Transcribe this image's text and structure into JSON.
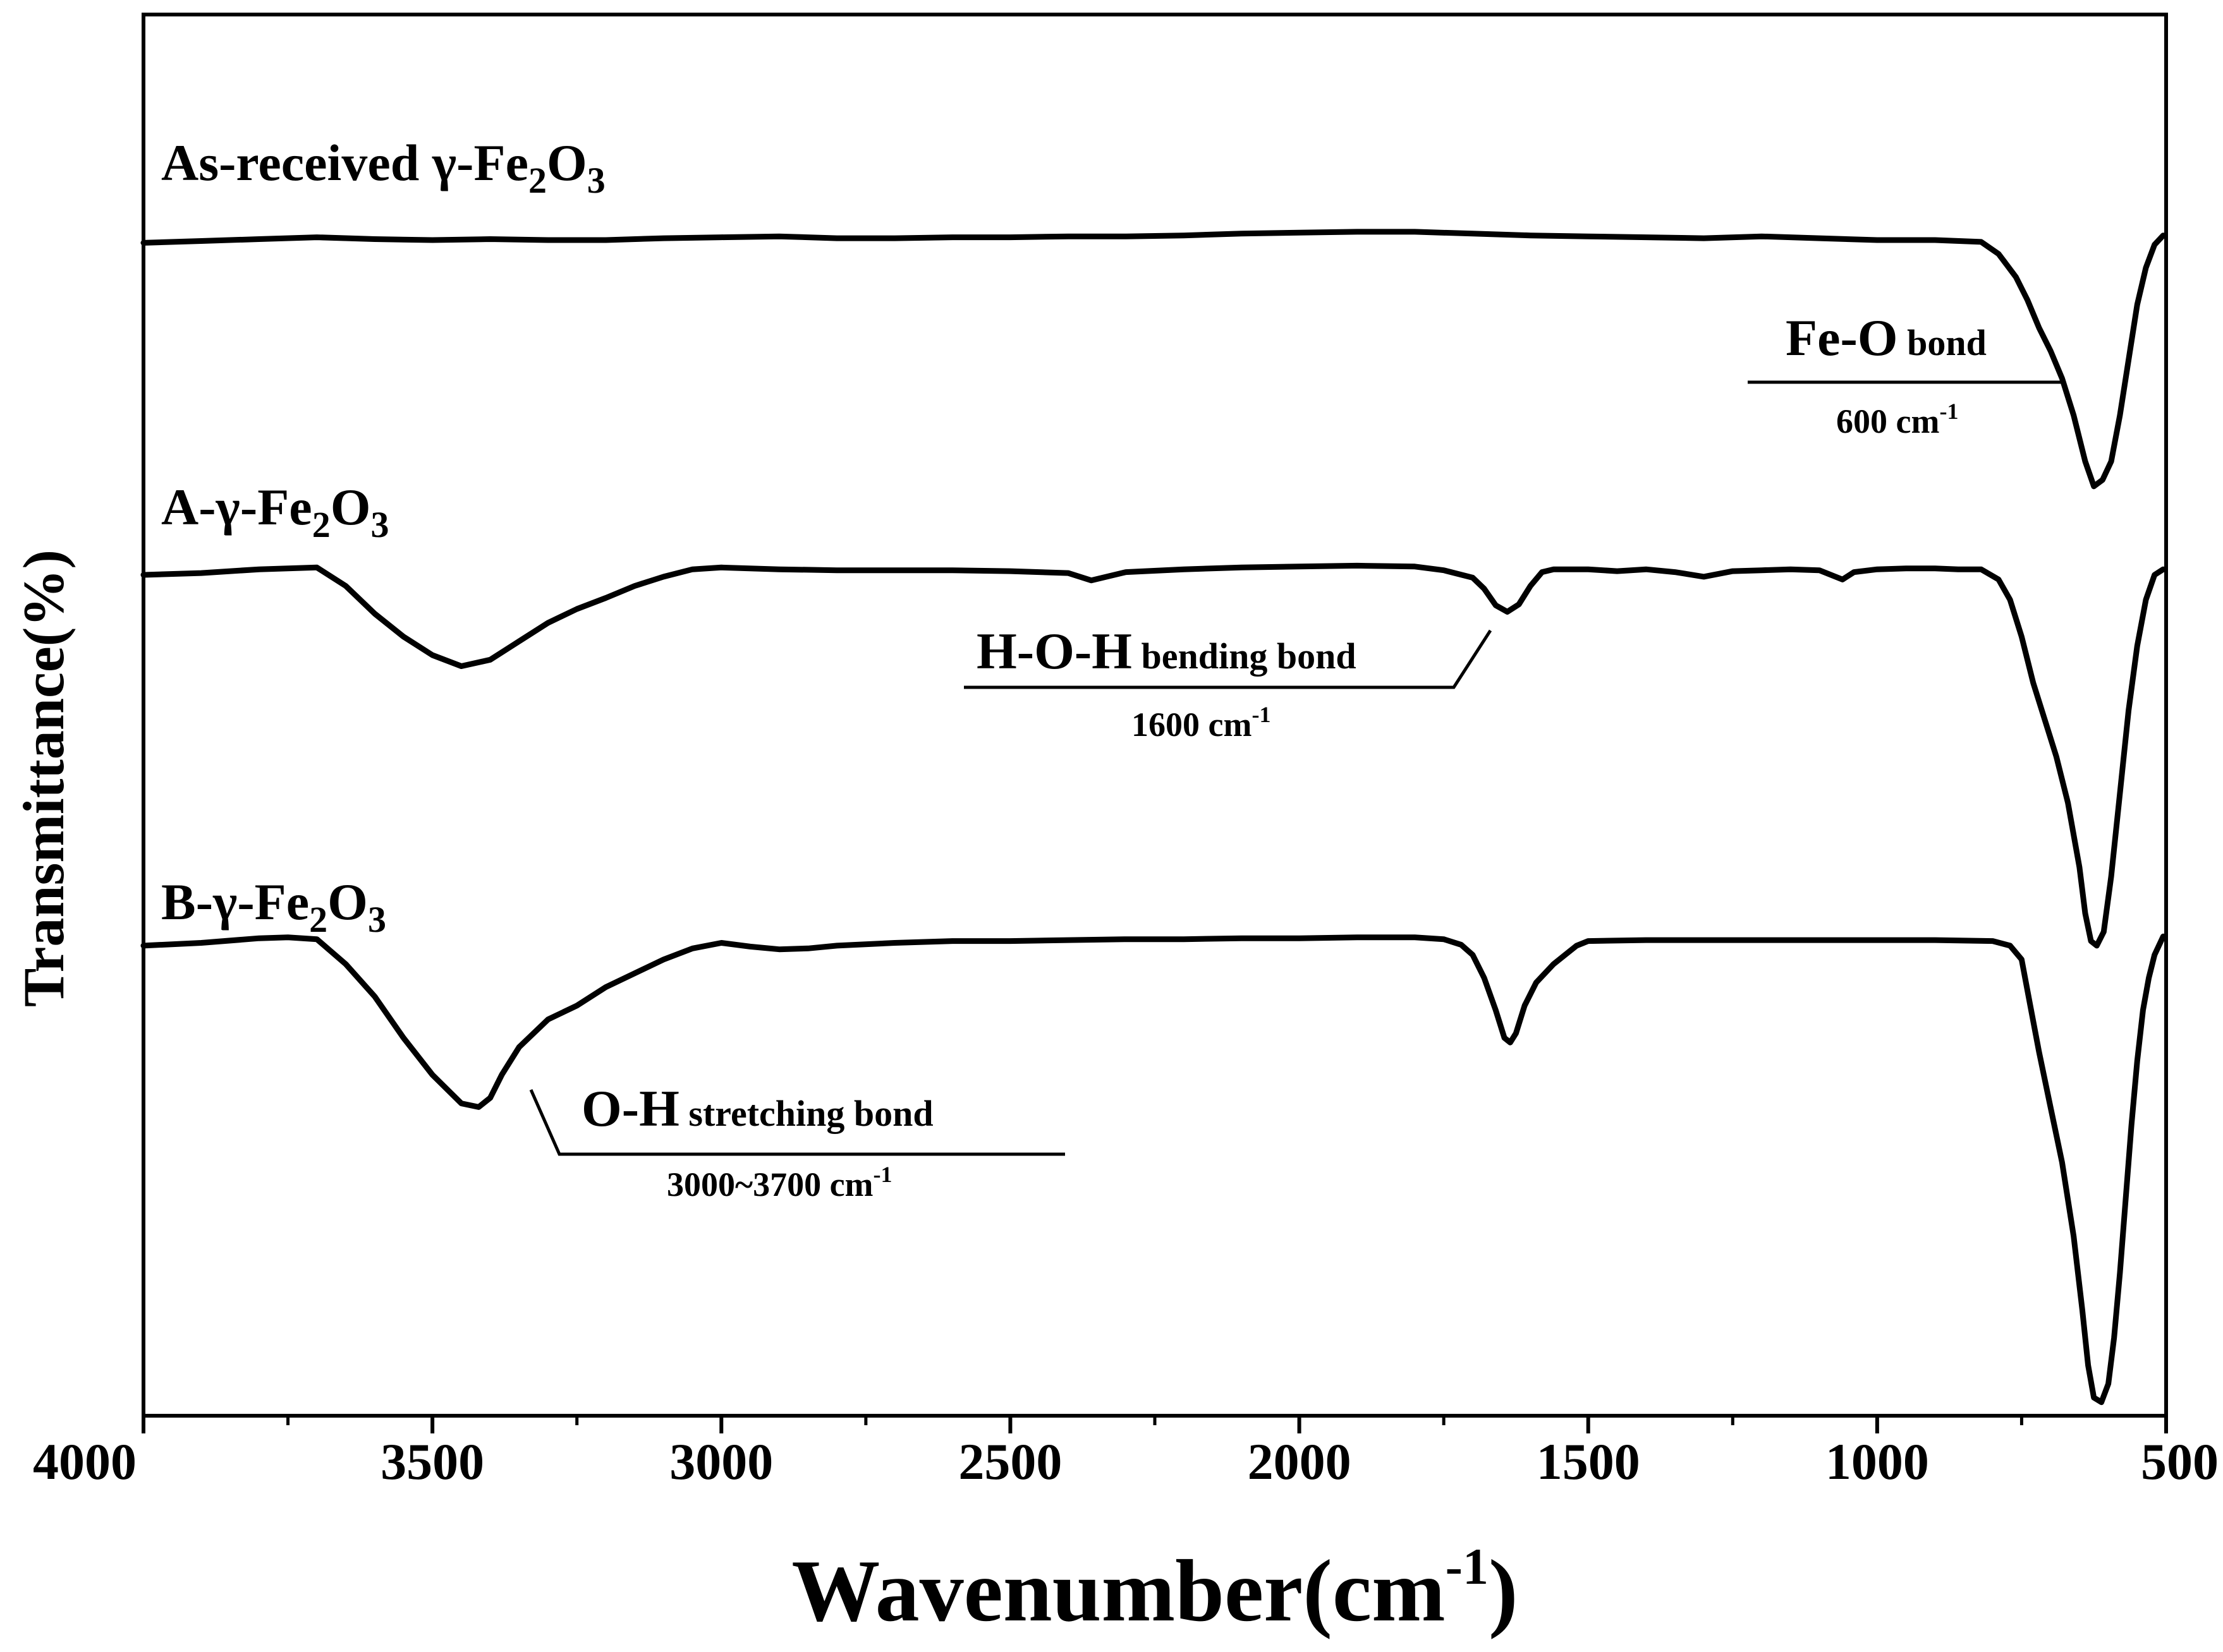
{
  "chart_data": {
    "type": "line",
    "title": "",
    "xlabel": "Wavenumber(cm",
    "xlabel_sup": "-1",
    "xlabel_close": ")",
    "ylabel": "Transmittance(%)",
    "xlim": [
      4000,
      500
    ],
    "x_reversed": true,
    "y_ticks_shown": false,
    "x_ticks": [
      "4000",
      "3500",
      "3000",
      "2500",
      "2000",
      "1500",
      "1000",
      "500"
    ],
    "series": [
      {
        "name": "As-received γ-Fe2O3",
        "label_main": "As-received γ-Fe",
        "label_sub1": "2",
        "label_mid": "O",
        "label_sub2": "3",
        "offset": 0,
        "points": [
          [
            4000,
            -0.3
          ],
          [
            3900,
            -0.1
          ],
          [
            3800,
            0.1
          ],
          [
            3700,
            0.3
          ],
          [
            3600,
            0.1
          ],
          [
            3500,
            0.0
          ],
          [
            3400,
            0.1
          ],
          [
            3300,
            0.0
          ],
          [
            3200,
            0.0
          ],
          [
            3100,
            0.2
          ],
          [
            3000,
            0.3
          ],
          [
            2900,
            0.4
          ],
          [
            2800,
            0.2
          ],
          [
            2700,
            0.2
          ],
          [
            2600,
            0.3
          ],
          [
            2500,
            0.3
          ],
          [
            2400,
            0.4
          ],
          [
            2300,
            0.4
          ],
          [
            2200,
            0.5
          ],
          [
            2100,
            0.7
          ],
          [
            2000,
            0.8
          ],
          [
            1900,
            0.9
          ],
          [
            1800,
            0.9
          ],
          [
            1700,
            0.7
          ],
          [
            1600,
            0.5
          ],
          [
            1500,
            0.4
          ],
          [
            1400,
            0.3
          ],
          [
            1300,
            0.2
          ],
          [
            1200,
            0.4
          ],
          [
            1100,
            0.2
          ],
          [
            1000,
            0.0
          ],
          [
            900,
            0.0
          ],
          [
            820,
            -0.2
          ],
          [
            790,
            -1.5
          ],
          [
            760,
            -4.0
          ],
          [
            740,
            -6.5
          ],
          [
            720,
            -9.5
          ],
          [
            700,
            -12.0
          ],
          [
            680,
            -15.0
          ],
          [
            660,
            -19.0
          ],
          [
            640,
            -24.0
          ],
          [
            625,
            -26.7
          ],
          [
            610,
            -26.0
          ],
          [
            595,
            -24.0
          ],
          [
            580,
            -19.0
          ],
          [
            565,
            -13.0
          ],
          [
            550,
            -7.0
          ],
          [
            535,
            -3.0
          ],
          [
            520,
            -0.5
          ],
          [
            505,
            0.5
          ]
        ]
      },
      {
        "name": "A-γ-Fe2O3",
        "label_main": "A-γ-Fe",
        "label_sub1": "2",
        "label_mid": "O",
        "label_sub2": "3",
        "offset": -36,
        "points": [
          [
            4000,
            -0.3
          ],
          [
            3900,
            -0.1
          ],
          [
            3800,
            0.3
          ],
          [
            3700,
            0.5
          ],
          [
            3650,
            -1.5
          ],
          [
            3600,
            -4.5
          ],
          [
            3550,
            -7.0
          ],
          [
            3500,
            -9.0
          ],
          [
            3450,
            -10.2
          ],
          [
            3400,
            -9.5
          ],
          [
            3350,
            -7.5
          ],
          [
            3300,
            -5.5
          ],
          [
            3250,
            -4.0
          ],
          [
            3200,
            -2.8
          ],
          [
            3150,
            -1.5
          ],
          [
            3100,
            -0.5
          ],
          [
            3050,
            0.3
          ],
          [
            3000,
            0.5
          ],
          [
            2900,
            0.3
          ],
          [
            2800,
            0.2
          ],
          [
            2700,
            0.2
          ],
          [
            2600,
            0.2
          ],
          [
            2500,
            0.1
          ],
          [
            2400,
            -0.1
          ],
          [
            2360,
            -0.9
          ],
          [
            2300,
            0.0
          ],
          [
            2200,
            0.3
          ],
          [
            2100,
            0.5
          ],
          [
            2000,
            0.6
          ],
          [
            1900,
            0.7
          ],
          [
            1800,
            0.6
          ],
          [
            1750,
            0.2
          ],
          [
            1700,
            -0.6
          ],
          [
            1680,
            -1.8
          ],
          [
            1660,
            -3.6
          ],
          [
            1640,
            -4.3
          ],
          [
            1620,
            -3.5
          ],
          [
            1600,
            -1.5
          ],
          [
            1580,
            0.0
          ],
          [
            1560,
            0.3
          ],
          [
            1500,
            0.3
          ],
          [
            1450,
            0.1
          ],
          [
            1400,
            0.3
          ],
          [
            1350,
            0.0
          ],
          [
            1300,
            -0.5
          ],
          [
            1250,
            0.1
          ],
          [
            1200,
            0.2
          ],
          [
            1150,
            0.3
          ],
          [
            1100,
            0.2
          ],
          [
            1060,
            -0.8
          ],
          [
            1040,
            0.0
          ],
          [
            1000,
            0.3
          ],
          [
            950,
            0.4
          ],
          [
            900,
            0.4
          ],
          [
            860,
            0.3
          ],
          [
            820,
            0.3
          ],
          [
            790,
            -0.8
          ],
          [
            770,
            -3.0
          ],
          [
            750,
            -7.0
          ],
          [
            730,
            -12.0
          ],
          [
            710,
            -16.0
          ],
          [
            690,
            -20.0
          ],
          [
            670,
            -25.0
          ],
          [
            650,
            -32.0
          ],
          [
            640,
            -37.0
          ],
          [
            630,
            -40.0
          ],
          [
            620,
            -40.5
          ],
          [
            608,
            -39.0
          ],
          [
            595,
            -33.0
          ],
          [
            580,
            -24.0
          ],
          [
            565,
            -15.0
          ],
          [
            550,
            -8.0
          ],
          [
            535,
            -3.0
          ],
          [
            520,
            -0.3
          ],
          [
            505,
            0.3
          ]
        ]
      },
      {
        "name": "B-γ-Fe2O3",
        "label_main": "B-γ-Fe",
        "label_sub1": "2",
        "label_mid": "O",
        "label_sub2": "3",
        "offset": -76,
        "points": [
          [
            4000,
            -0.5
          ],
          [
            3900,
            -0.2
          ],
          [
            3800,
            0.3
          ],
          [
            3750,
            0.4
          ],
          [
            3700,
            0.2
          ],
          [
            3650,
            -2.5
          ],
          [
            3600,
            -6.0
          ],
          [
            3550,
            -10.5
          ],
          [
            3500,
            -14.5
          ],
          [
            3450,
            -17.6
          ],
          [
            3420,
            -18.0
          ],
          [
            3400,
            -17.0
          ],
          [
            3380,
            -14.5
          ],
          [
            3350,
            -11.5
          ],
          [
            3300,
            -8.5
          ],
          [
            3250,
            -7.0
          ],
          [
            3200,
            -5.0
          ],
          [
            3150,
            -3.5
          ],
          [
            3100,
            -2.0
          ],
          [
            3050,
            -0.8
          ],
          [
            3000,
            -0.2
          ],
          [
            2950,
            -0.6
          ],
          [
            2900,
            -0.9
          ],
          [
            2850,
            -0.8
          ],
          [
            2800,
            -0.5
          ],
          [
            2700,
            -0.2
          ],
          [
            2600,
            0.0
          ],
          [
            2500,
            0.0
          ],
          [
            2400,
            0.1
          ],
          [
            2300,
            0.2
          ],
          [
            2200,
            0.2
          ],
          [
            2100,
            0.3
          ],
          [
            2000,
            0.3
          ],
          [
            1900,
            0.4
          ],
          [
            1850,
            0.4
          ],
          [
            1800,
            0.4
          ],
          [
            1750,
            0.2
          ],
          [
            1720,
            -0.4
          ],
          [
            1700,
            -1.5
          ],
          [
            1680,
            -4.0
          ],
          [
            1660,
            -7.5
          ],
          [
            1645,
            -10.5
          ],
          [
            1635,
            -11.0
          ],
          [
            1625,
            -10.0
          ],
          [
            1610,
            -7.0
          ],
          [
            1590,
            -4.5
          ],
          [
            1560,
            -2.5
          ],
          [
            1540,
            -1.5
          ],
          [
            1520,
            -0.5
          ],
          [
            1500,
            0.0
          ],
          [
            1400,
            0.1
          ],
          [
            1300,
            0.1
          ],
          [
            1200,
            0.1
          ],
          [
            1100,
            0.1
          ],
          [
            1000,
            0.1
          ],
          [
            900,
            0.1
          ],
          [
            800,
            0.0
          ],
          [
            770,
            -0.5
          ],
          [
            750,
            -2.0
          ],
          [
            735,
            -7.0
          ],
          [
            720,
            -12.0
          ],
          [
            700,
            -18.0
          ],
          [
            680,
            -24.0
          ],
          [
            660,
            -32.0
          ],
          [
            645,
            -40.0
          ],
          [
            635,
            -46.0
          ],
          [
            625,
            -49.5
          ],
          [
            612,
            -50.0
          ],
          [
            600,
            -48.0
          ],
          [
            590,
            -43.0
          ],
          [
            580,
            -36.0
          ],
          [
            570,
            -28.0
          ],
          [
            560,
            -20.0
          ],
          [
            550,
            -13.0
          ],
          [
            540,
            -7.5
          ],
          [
            530,
            -4.0
          ],
          [
            520,
            -1.5
          ],
          [
            505,
            0.5
          ]
        ]
      }
    ],
    "annotations": [
      {
        "id": "fe-o",
        "title": "Fe-O",
        "title_small": " bond",
        "value": "600 cm",
        "value_sup": "-1"
      },
      {
        "id": "hoh",
        "title": "H-O-H",
        "title_small": " bending bond",
        "value": "1600 cm",
        "value_sup": "-1"
      },
      {
        "id": "oh",
        "title": "O-H",
        "title_small": " stretching bond",
        "value": "3000~3700 cm",
        "value_sup": "-1"
      }
    ],
    "grid": false,
    "legend": "none"
  }
}
